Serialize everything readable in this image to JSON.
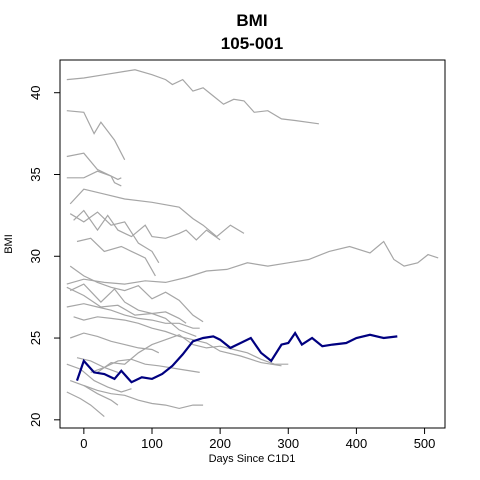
{
  "chart_data": {
    "type": "line",
    "title": "BMI",
    "subtitle": "105-001",
    "xlabel": "Days Since C1D1",
    "ylabel": "BMI",
    "xlim": [
      -35,
      530
    ],
    "ylim": [
      19.5,
      42
    ],
    "x_ticks": [
      0,
      100,
      200,
      300,
      400,
      500
    ],
    "y_ticks": [
      20,
      25,
      30,
      35,
      40
    ],
    "grid": false,
    "background_line_color": "#a6a6a6",
    "highlight_color": "#000080",
    "background_series": [
      {
        "x": [
          -25,
          0,
          30,
          60,
          75,
          100,
          120,
          130,
          145,
          160,
          175,
          190,
          205,
          220,
          235,
          250,
          270,
          290,
          310,
          345
        ],
        "y": [
          40.8,
          40.9,
          41.1,
          41.3,
          41.4,
          41.1,
          40.8,
          40.5,
          40.8,
          40.1,
          40.3,
          39.8,
          39.3,
          39.6,
          39.5,
          38.8,
          38.9,
          38.4,
          38.3,
          38.1
        ]
      },
      {
        "x": [
          -25,
          0,
          15,
          25,
          45,
          60
        ],
        "y": [
          38.9,
          38.8,
          37.5,
          38.2,
          37.1,
          35.9
        ]
      },
      {
        "x": [
          -25,
          0,
          20,
          40,
          50,
          55
        ],
        "y": [
          36.1,
          36.3,
          35.3,
          34.9,
          34.7,
          34.8
        ]
      },
      {
        "x": [
          -25,
          0,
          20,
          40,
          45,
          55
        ],
        "y": [
          34.8,
          34.8,
          35.2,
          34.9,
          34.5,
          34.3
        ]
      },
      {
        "x": [
          -20,
          0,
          30,
          60,
          100,
          140,
          160,
          175,
          195,
          215,
          235
        ],
        "y": [
          33.2,
          34.1,
          33.8,
          33.5,
          33.3,
          33.0,
          32.3,
          31.9,
          31.2,
          31.9,
          31.4
        ]
      },
      {
        "x": [
          -15,
          0,
          20,
          35,
          50,
          70,
          90,
          100,
          120,
          140,
          150,
          165,
          180,
          200
        ],
        "y": [
          32.2,
          32.8,
          31.6,
          32.5,
          31.6,
          31.2,
          31.9,
          31.2,
          31.1,
          31.4,
          31.6,
          31.0,
          31.6,
          31.0
        ]
      },
      {
        "x": [
          -20,
          0,
          20,
          40,
          60,
          80,
          100,
          110
        ],
        "y": [
          32.6,
          32.1,
          32.7,
          31.9,
          32.1,
          30.8,
          30.3,
          29.6
        ]
      },
      {
        "x": [
          -10,
          10,
          30,
          55,
          70,
          90,
          105
        ],
        "y": [
          30.9,
          31.1,
          30.3,
          30.6,
          30.3,
          29.9,
          28.8
        ]
      },
      {
        "x": [
          -25,
          0,
          30,
          60,
          90,
          120,
          150,
          180,
          210,
          240,
          270,
          300,
          330,
          360,
          390,
          420,
          440,
          455,
          470,
          490,
          505,
          520
        ],
        "y": [
          28.3,
          28.6,
          28.4,
          28.3,
          28.5,
          28.4,
          28.7,
          29.1,
          29.2,
          29.6,
          29.4,
          29.6,
          29.8,
          30.3,
          30.6,
          30.2,
          30.9,
          29.8,
          29.4,
          29.6,
          30.1,
          29.9
        ]
      },
      {
        "x": [
          -20,
          0,
          20,
          40,
          60,
          80,
          100,
          120,
          140,
          160,
          175
        ],
        "y": [
          29.4,
          28.8,
          28.4,
          28.1,
          27.9,
          28.2,
          27.4,
          27.8,
          27.3,
          26.4,
          26.0
        ]
      },
      {
        "x": [
          -25,
          0,
          25,
          50,
          75,
          100,
          120,
          140,
          150
        ],
        "y": [
          28.1,
          27.6,
          26.9,
          27.0,
          26.4,
          26.5,
          26.6,
          26.2,
          25.9
        ]
      },
      {
        "x": [
          -25,
          0,
          20,
          40,
          60,
          80,
          100,
          120,
          140,
          160,
          170
        ],
        "y": [
          26.9,
          27.1,
          26.9,
          26.7,
          26.4,
          26.2,
          26.1,
          25.9,
          25.9,
          25.6,
          25.6
        ]
      },
      {
        "x": [
          -15,
          0,
          20,
          40,
          60,
          80,
          100,
          120,
          140,
          160,
          180,
          200,
          230,
          260,
          290
        ],
        "y": [
          26.3,
          26.1,
          26.3,
          26.2,
          26.1,
          25.9,
          25.6,
          25.4,
          25.1,
          24.9,
          24.7,
          24.2,
          23.9,
          23.5,
          23.3
        ]
      },
      {
        "x": [
          -20,
          0,
          20,
          40,
          60,
          80,
          100,
          110
        ],
        "y": [
          25.0,
          25.3,
          25.1,
          24.8,
          24.6,
          24.4,
          24.3,
          24.1
        ]
      },
      {
        "x": [
          -25,
          -5,
          15,
          35,
          55,
          70
        ],
        "y": [
          23.4,
          23.1,
          22.4,
          22.0,
          21.7,
          21.9
        ]
      },
      {
        "x": [
          -20,
          0,
          20,
          40,
          50
        ],
        "y": [
          22.4,
          22.1,
          21.6,
          21.2,
          20.9
        ]
      },
      {
        "x": [
          -25,
          -5,
          10,
          30
        ],
        "y": [
          21.7,
          21.3,
          20.9,
          20.2
        ]
      },
      {
        "x": [
          0,
          20,
          40,
          60,
          80,
          100,
          120,
          140,
          160,
          175
        ],
        "y": [
          22.1,
          21.8,
          21.6,
          21.5,
          21.2,
          21.0,
          20.9,
          20.7,
          20.9,
          20.9
        ]
      },
      {
        "x": [
          -10,
          10,
          30,
          50
        ],
        "y": [
          23.8,
          23.6,
          23.2,
          22.9
        ]
      },
      {
        "x": [
          10,
          30,
          50,
          70,
          90,
          110,
          140,
          170
        ],
        "y": [
          22.9,
          23.2,
          23.6,
          23.7,
          23.4,
          23.3,
          23.1,
          22.9
        ]
      },
      {
        "x": [
          -20,
          0,
          25,
          45,
          60,
          80,
          100,
          120,
          140,
          165
        ],
        "y": [
          27.9,
          28.3,
          27.2,
          28.0,
          27.2,
          26.7,
          26.5,
          26.2,
          25.5,
          25.1
        ]
      },
      {
        "x": [
          20,
          40,
          60,
          80,
          100,
          120,
          140,
          160,
          180,
          200,
          220,
          240,
          260,
          280,
          300
        ],
        "y": [
          22.9,
          23.5,
          23.4,
          24.1,
          24.6,
          24.9,
          25.2,
          24.6,
          24.4,
          24.5,
          24.3,
          24.1,
          23.7,
          23.4,
          23.4
        ]
      }
    ],
    "series": [
      {
        "x": [
          -10,
          0,
          15,
          30,
          45,
          55,
          70,
          85,
          100,
          115,
          130,
          145,
          160,
          175,
          190,
          200,
          215,
          230,
          245,
          260,
          275,
          290,
          300,
          310,
          320,
          335,
          350,
          365,
          385,
          400,
          420,
          440,
          460
        ],
        "y": [
          22.4,
          23.6,
          22.9,
          22.8,
          22.5,
          23.0,
          22.3,
          22.6,
          22.5,
          22.8,
          23.3,
          24.0,
          24.8,
          25.0,
          25.1,
          24.9,
          24.4,
          24.7,
          25.0,
          24.1,
          23.6,
          24.6,
          24.7,
          25.3,
          24.6,
          25.0,
          24.5,
          24.6,
          24.7,
          25.0,
          25.2,
          25.0,
          25.1
        ]
      }
    ]
  }
}
